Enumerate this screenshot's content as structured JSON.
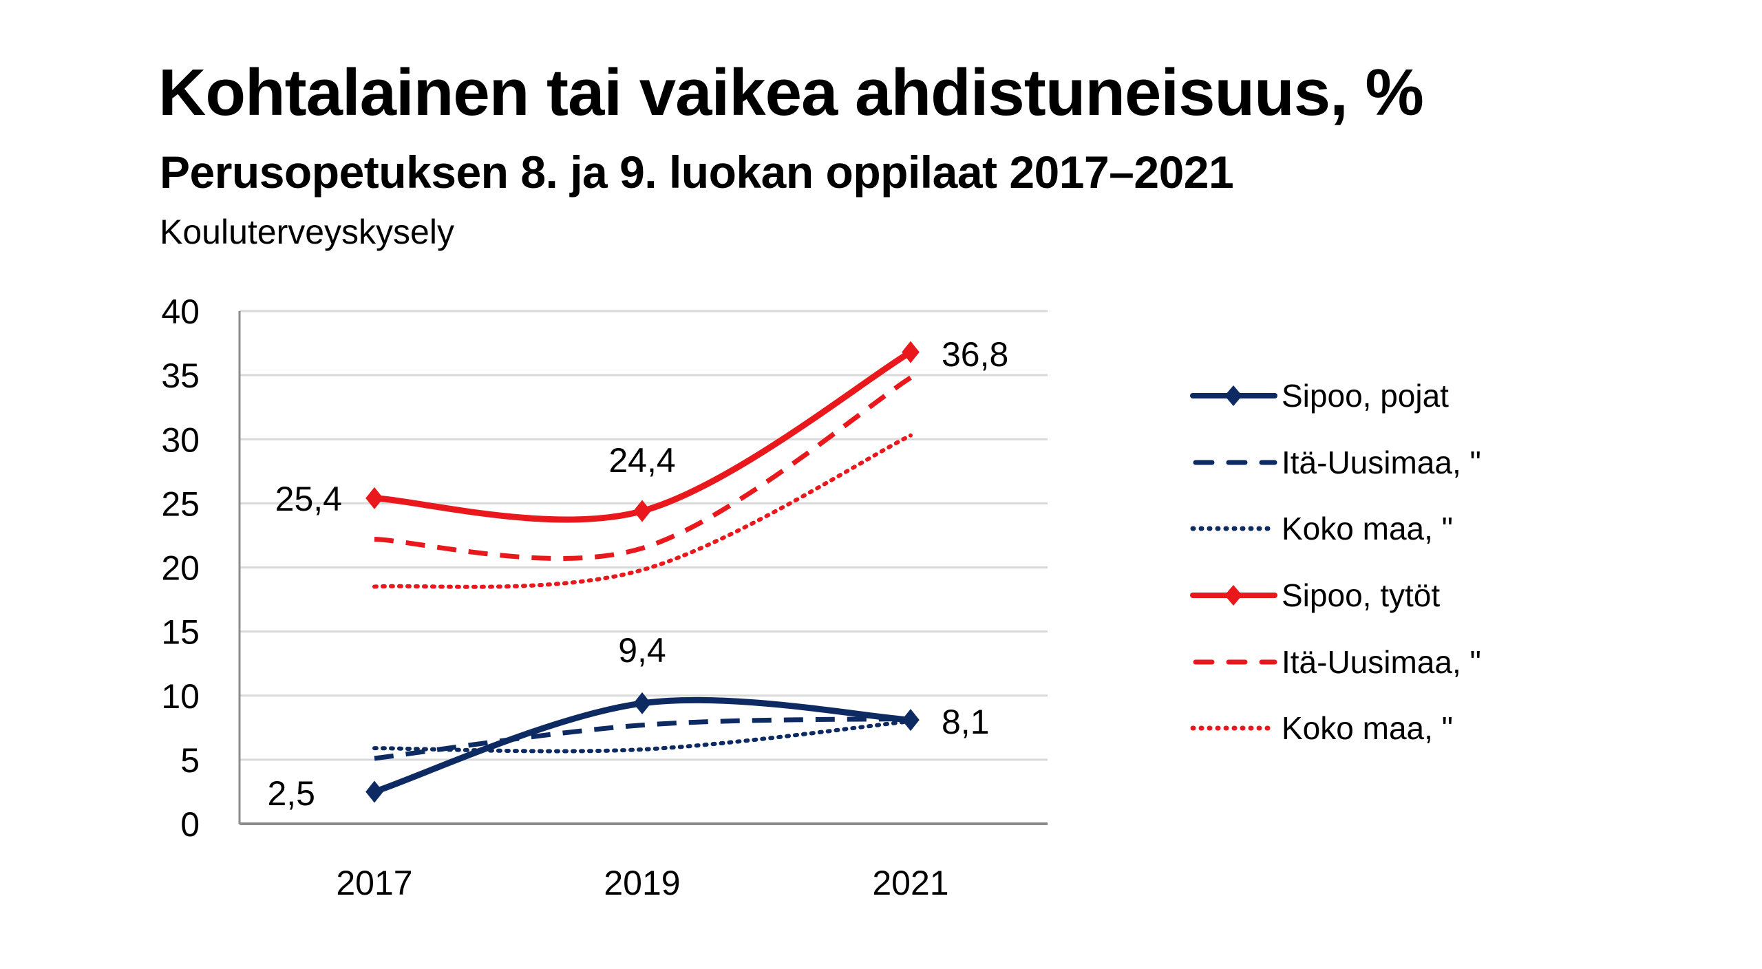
{
  "header": {
    "title": "Kohtalainen tai vaikea ahdistuneisuus, %",
    "subtitle": "Perusopetuksen 8. ja 9. luokan oppilaat 2017–2021",
    "source": "Kouluterveyskysely"
  },
  "colors": {
    "blue": "#0d2a62",
    "red": "#e8181c",
    "grid": "#d9d9d9",
    "axis": "#8c8c8c"
  },
  "chart_data": {
    "type": "line",
    "title": "Kohtalainen tai vaikea ahdistuneisuus, %",
    "subtitle": "Perusopetuksen 8. ja 9. luokan oppilaat 2017–2021",
    "source": "Kouluterveyskysely",
    "xlabel": "",
    "ylabel": "",
    "categories": [
      "2017",
      "2019",
      "2021"
    ],
    "ylim": [
      0,
      40
    ],
    "yticks": [
      "0",
      "5",
      "10",
      "15",
      "20",
      "25",
      "30",
      "35",
      "40"
    ],
    "grid": true,
    "legend_position": "right",
    "smooth": true,
    "series": [
      {
        "name": "Sipoo, pojat",
        "color": "#0d2a62",
        "style": "solid",
        "marker": "diamond",
        "values": [
          2.5,
          9.4,
          8.1
        ],
        "labels": [
          "2,5",
          "9,4",
          "8,1"
        ]
      },
      {
        "name": "Itä-Uusimaa, \"",
        "color": "#0d2a62",
        "style": "dashed",
        "marker": "none",
        "values": [
          5.1,
          7.7,
          8.2
        ],
        "labels": []
      },
      {
        "name": "Koko maa, \"",
        "color": "#0d2a62",
        "style": "dotted",
        "marker": "none",
        "values": [
          5.9,
          5.8,
          8.0
        ],
        "labels": []
      },
      {
        "name": "Sipoo, tytöt",
        "color": "#e8181c",
        "style": "solid",
        "marker": "diamond",
        "values": [
          25.4,
          24.4,
          36.8
        ],
        "labels": [
          "25,4",
          "24,4",
          "36,8"
        ]
      },
      {
        "name": "Itä-Uusimaa, \"",
        "color": "#e8181c",
        "style": "dashed",
        "marker": "none",
        "values": [
          22.2,
          21.5,
          34.8
        ],
        "labels": []
      },
      {
        "name": "Koko maa, \"",
        "color": "#e8181c",
        "style": "dotted",
        "marker": "none",
        "values": [
          18.5,
          19.8,
          30.3
        ],
        "labels": []
      }
    ]
  }
}
